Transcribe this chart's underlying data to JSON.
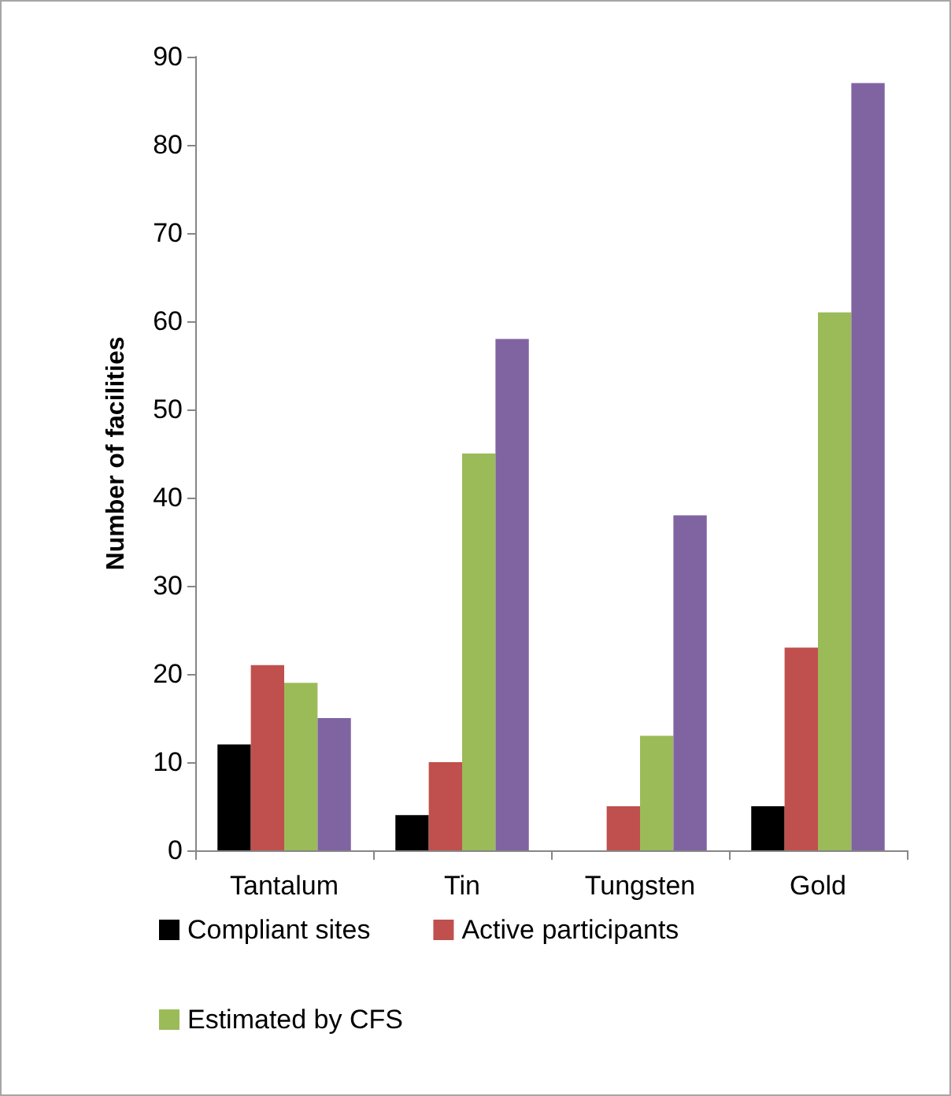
{
  "chart_data": {
    "type": "bar",
    "ylabel": "Number of facilities",
    "categories": [
      "Tantalum",
      "Tin",
      "Tungsten",
      "Gold"
    ],
    "series": [
      {
        "name": "Compliant sites",
        "color": "#000000",
        "values": [
          12,
          4,
          0,
          5
        ]
      },
      {
        "name": "Active participants",
        "color": "#c0504d",
        "values": [
          21,
          10,
          5,
          23
        ]
      },
      {
        "name": "Estimated by CFS",
        "color": "#9bbb59",
        "values": [
          19,
          45,
          13,
          61
        ]
      },
      {
        "color": "#8064a2",
        "values": [
          15,
          58,
          38,
          87
        ]
      }
    ],
    "ylim": [
      0,
      90
    ],
    "yticks": [
      0,
      10,
      20,
      30,
      40,
      50,
      60,
      70,
      80,
      90
    ],
    "grid": false,
    "legend": "bottom"
  }
}
